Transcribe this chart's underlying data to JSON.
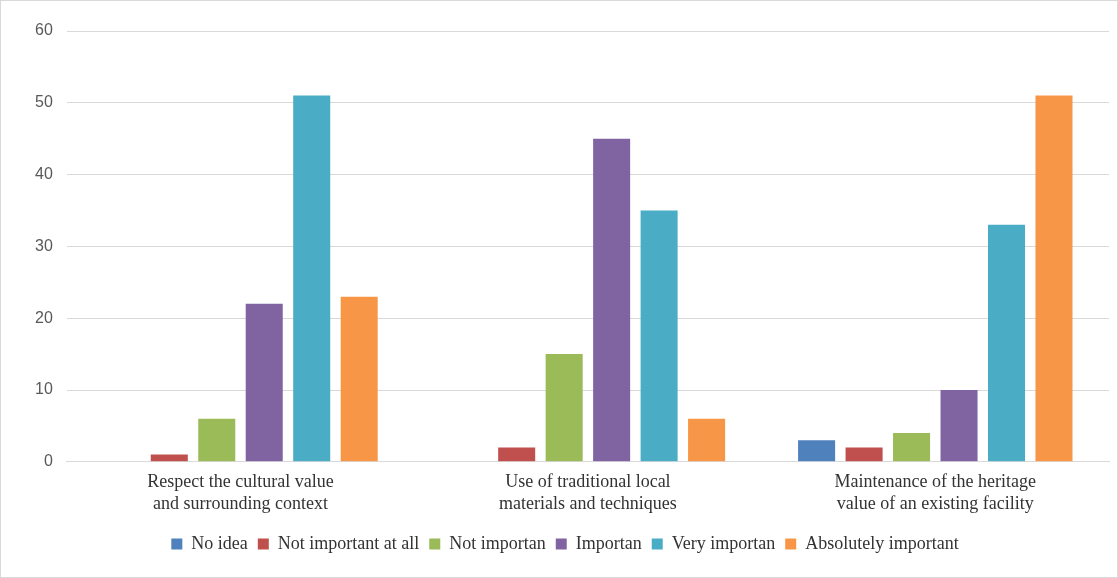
{
  "chart_data": {
    "type": "bar",
    "categories": [
      "Respect the cultural value and surrounding context",
      "Use of traditional local materials and techniques",
      "Maintenance of the heritage value of an existing facility"
    ],
    "series": [
      {
        "name": "No idea",
        "color": "#4f81bd",
        "values": [
          0,
          0,
          3
        ]
      },
      {
        "name": "Not important at all",
        "color": "#c0504d",
        "values": [
          1,
          2,
          2
        ]
      },
      {
        "name": "Not importan",
        "color": "#9bbb59",
        "values": [
          6,
          15,
          4
        ]
      },
      {
        "name": "Importan",
        "color": "#8064a2",
        "values": [
          22,
          45,
          10
        ]
      },
      {
        "name": "Very importan",
        "color": "#4bacc6",
        "values": [
          51,
          35,
          33
        ]
      },
      {
        "name": "Absolutely important",
        "color": "#f79646",
        "values": [
          23,
          6,
          51
        ]
      }
    ],
    "ylim": [
      0,
      60
    ],
    "yticks": [
      0,
      10,
      20,
      30,
      40,
      50,
      60
    ],
    "grid": "y",
    "legend": "bottom"
  }
}
